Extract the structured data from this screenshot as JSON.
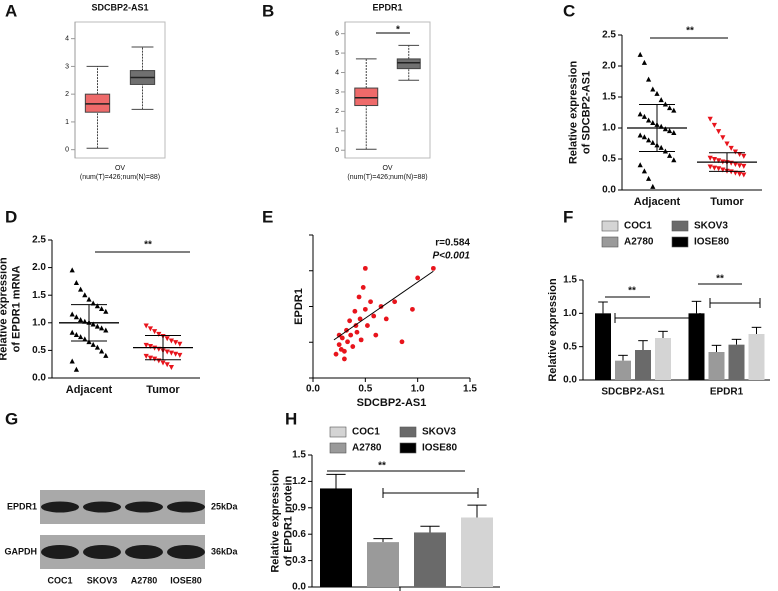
{
  "chart_data": [
    {
      "label": "A",
      "type": "box",
      "title": "SDCBP2-AS1",
      "xlabel": [
        "OV",
        "(num(T)=426;num(N)=88)"
      ],
      "ylim": [
        -0.3,
        4.6
      ],
      "yticks": [
        0,
        1,
        2,
        3,
        4
      ],
      "colors": [
        "#ee6a6a",
        "#707070"
      ],
      "stats": [
        [
          0.05,
          1.35,
          1.65,
          2.0,
          3.0
        ],
        [
          1.45,
          2.35,
          2.6,
          2.85,
          3.7
        ]
      ]
    },
    {
      "label": "B",
      "type": "box",
      "title": "EPDR1",
      "xlabel": [
        "OV",
        "(num(T)=426;num(N)=88)"
      ],
      "ylim": [
        -0.4,
        6.6
      ],
      "yticks": [
        0,
        1,
        2,
        3,
        4,
        5,
        6
      ],
      "colors": [
        "#ee6a6a",
        "#707070"
      ],
      "stats": [
        [
          0.05,
          2.3,
          2.7,
          3.2,
          4.7
        ],
        [
          3.6,
          4.2,
          4.5,
          4.7,
          5.4
        ]
      ],
      "annotations": [
        "*"
      ]
    },
    {
      "label": "C",
      "type": "dot",
      "ylabel": [
        "Relative expression",
        "of SDCBP2-AS1"
      ],
      "categories": [
        "Adjacent",
        "Tumor"
      ],
      "colors": [
        "#000000",
        "#e8141c"
      ],
      "ylim": [
        0,
        2.5
      ],
      "yticks": [
        {
          "value": 0,
          "label": "0.0"
        },
        0.5,
        {
          "value": 1,
          "label": "1.0"
        },
        1.5,
        {
          "value": 2,
          "label": "2.0"
        },
        2.5
      ],
      "points": [
        [
          2.18,
          2.05,
          1.78,
          1.62,
          1.55,
          1.45,
          1.38,
          1.32,
          1.28,
          1.22,
          1.18,
          1.12,
          1.08,
          1.05,
          1.02,
          0.98,
          0.95,
          0.92,
          0.88,
          0.85,
          0.8,
          0.76,
          0.72,
          0.68,
          0.62,
          0.55,
          0.48,
          0.4,
          0.3,
          0.18,
          0.05
        ],
        [
          1.15,
          1.05,
          0.95,
          0.85,
          0.75,
          0.68,
          0.62,
          0.58,
          0.55,
          0.52,
          0.5,
          0.48,
          0.46,
          0.45,
          0.44,
          0.42,
          0.4,
          0.39,
          0.38,
          0.36,
          0.35,
          0.33,
          0.31,
          0.3,
          0.28,
          0.26,
          0.25
        ]
      ],
      "means": [
        1.0,
        0.45
      ],
      "sd": [
        0.38,
        0.15
      ],
      "annotations": [
        "**"
      ]
    },
    {
      "label": "D",
      "type": "dot",
      "ylabel": [
        "Relative expression",
        "of EPDR1 mRNA"
      ],
      "categories": [
        "Adjacent",
        "Tumor"
      ],
      "colors": [
        "#000000",
        "#e8141c"
      ],
      "ylim": [
        0,
        2.5
      ],
      "yticks": [
        {
          "value": 0,
          "label": "0.0"
        },
        0.5,
        {
          "value": 1,
          "label": "1.0"
        },
        1.5,
        {
          "value": 2,
          "label": "2.0"
        },
        2.5
      ],
      "points": [
        [
          1.95,
          1.72,
          1.6,
          1.5,
          1.42,
          1.35,
          1.3,
          1.25,
          1.2,
          1.15,
          1.1,
          1.05,
          1.02,
          1.0,
          0.97,
          0.93,
          0.9,
          0.86,
          0.82,
          0.78,
          0.74,
          0.7,
          0.65,
          0.6,
          0.55,
          0.48,
          0.4,
          0.3,
          0.15
        ],
        [
          0.95,
          0.9,
          0.85,
          0.8,
          0.76,
          0.72,
          0.68,
          0.65,
          0.62,
          0.6,
          0.58,
          0.55,
          0.53,
          0.5,
          0.48,
          0.46,
          0.44,
          0.42,
          0.4,
          0.37,
          0.35,
          0.32,
          0.28,
          0.25,
          0.2
        ]
      ],
      "means": [
        1.0,
        0.55
      ],
      "sd": [
        0.33,
        0.22
      ],
      "annotations": [
        "**"
      ]
    },
    {
      "label": "E",
      "type": "scatter",
      "xlabel": "SDCBP2-AS1",
      "ylabel": "EPDR1",
      "color": "#e8141c",
      "xlim": [
        0,
        1.5
      ],
      "xticks": [
        {
          "value": 0,
          "label": "0.0"
        },
        0.5,
        {
          "value": 1,
          "label": "1.0"
        },
        1.5
      ],
      "ylim": [
        0,
        1.5
      ],
      "x": [
        0.22,
        0.25,
        0.27,
        0.28,
        0.3,
        0.32,
        0.33,
        0.35,
        0.36,
        0.38,
        0.4,
        0.41,
        0.42,
        0.44,
        0.45,
        0.46,
        0.48,
        0.5,
        0.5,
        0.52,
        0.55,
        0.58,
        0.6,
        0.65,
        0.7,
        0.78,
        0.85,
        0.95,
        1.0,
        1.15,
        0.3,
        0.25
      ],
      "y": [
        0.25,
        0.35,
        0.3,
        0.42,
        0.28,
        0.5,
        0.38,
        0.6,
        0.45,
        0.33,
        0.7,
        0.55,
        0.48,
        0.85,
        0.62,
        0.4,
        0.95,
        1.15,
        0.72,
        0.55,
        0.8,
        0.65,
        0.45,
        0.75,
        0.62,
        0.8,
        0.38,
        0.72,
        1.05,
        1.15,
        0.2,
        0.45
      ],
      "fit": {
        "x": [
          0.2,
          1.15
        ],
        "y": [
          0.4,
          1.12
        ]
      },
      "annotations": [
        "r=0.584",
        "P<0.001"
      ]
    },
    {
      "label": "F",
      "type": "bar",
      "ylabel": [
        "Relative expression"
      ],
      "categories": [
        "SDCBP2-AS1",
        "EPDR1"
      ],
      "ylim": [
        0,
        1.5
      ],
      "yticks": [
        {
          "value": 0,
          "label": "0.0"
        },
        0.5,
        {
          "value": 1,
          "label": "1.0"
        },
        1.5
      ],
      "series": [
        {
          "name": "IOSE80",
          "color": "#000000",
          "values": [
            1.0,
            1.0
          ],
          "errors": [
            0.17,
            0.18
          ]
        },
        {
          "name": "A2780",
          "color": "#9a9a9a",
          "values": [
            0.29,
            0.42
          ],
          "errors": [
            0.08,
            0.1
          ]
        },
        {
          "name": "SKOV3",
          "color": "#6a6a6a",
          "values": [
            0.45,
            0.53
          ],
          "errors": [
            0.14,
            0.08
          ]
        },
        {
          "name": "COC1",
          "color": "#d4d4d4",
          "values": [
            0.63,
            0.69
          ],
          "errors": [
            0.1,
            0.1
          ]
        }
      ],
      "annotations": [
        "**",
        "**"
      ]
    },
    {
      "label": "G",
      "type": "blot",
      "rows": [
        "EPDR1",
        "GAPDH"
      ],
      "sizes": [
        "25kDa",
        "36kDa"
      ],
      "lanes": [
        "COC1",
        "SKOV3",
        "A2780",
        "IOSE80"
      ]
    },
    {
      "label": "H",
      "type": "bar",
      "ylabel": [
        "Relative expression",
        "of EPDR1 protein"
      ],
      "categories": [
        null
      ],
      "ylim": [
        0,
        1.5
      ],
      "yticks": [
        {
          "value": 0,
          "label": "0.0"
        },
        0.3,
        0.6,
        0.9,
        1.2,
        1.5
      ],
      "series": [
        {
          "name": "IOSE80",
          "color": "#000000",
          "values": [
            1.12
          ],
          "errors": [
            0.16
          ]
        },
        {
          "name": "A2780",
          "color": "#9a9a9a",
          "values": [
            0.51
          ],
          "errors": [
            0.04
          ]
        },
        {
          "name": "SKOV3",
          "color": "#6a6a6a",
          "values": [
            0.62
          ],
          "errors": [
            0.07
          ]
        },
        {
          "name": "COC1",
          "color": "#d4d4d4",
          "values": [
            0.79
          ],
          "errors": [
            0.14
          ]
        }
      ],
      "annotations": [
        "**"
      ]
    }
  ]
}
